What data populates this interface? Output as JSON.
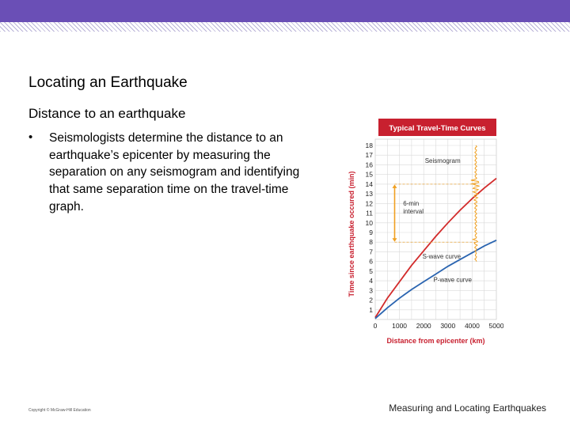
{
  "slide": {
    "title": "Locating an Earthquake",
    "subtitle": "Distance to an earthquake",
    "bullet_symbol": "•",
    "bullet": "Seismologists determine the distance to an earthquake’s epicenter by measuring the separation on any seismogram and identifying that same separation time on the travel-time graph.",
    "copyright": "Copyright © McGraw-Hill Education",
    "footer": "Measuring and Locating Earthquakes"
  },
  "colors": {
    "band": "#6a4fb6",
    "chart_header": "#c8202f",
    "s_wave": "#d22b2b",
    "p_wave": "#2a64b0",
    "seismogram": "#f0a020",
    "interval": "#f0a020",
    "axis_label": "#c8202f"
  },
  "chart_data": {
    "type": "line",
    "title": "Typical Travel-Time Curves",
    "xlabel": "Distance from epicenter (km)",
    "ylabel": "Time since earthquake occured (min)",
    "xlim": [
      0,
      5000
    ],
    "ylim": [
      0,
      18
    ],
    "x_ticks": [
      0,
      1000,
      2000,
      3000,
      4000,
      5000
    ],
    "y_ticks": [
      1,
      2,
      3,
      4,
      5,
      6,
      7,
      8,
      9,
      10,
      11,
      12,
      13,
      14,
      15,
      16,
      17,
      18
    ],
    "grid": true,
    "series": [
      {
        "name": "S-wave curve",
        "x": [
          0,
          500,
          1000,
          1500,
          2000,
          2500,
          3000,
          3500,
          4000,
          4500,
          5000
        ],
        "y": [
          0.2,
          2.2,
          3.9,
          5.6,
          7.1,
          8.6,
          10.0,
          11.3,
          12.5,
          13.6,
          14.6
        ]
      },
      {
        "name": "P-wave curve",
        "x": [
          0,
          500,
          1000,
          1500,
          2000,
          2500,
          3000,
          3500,
          4000,
          4500,
          5000
        ],
        "y": [
          0.1,
          1.2,
          2.2,
          3.1,
          3.9,
          4.7,
          5.5,
          6.2,
          6.9,
          7.6,
          8.2
        ]
      }
    ],
    "annotations": [
      {
        "text": "Seismogram"
      },
      {
        "text": "6-min interval",
        "y_from": 8,
        "y_to": 14
      }
    ]
  }
}
